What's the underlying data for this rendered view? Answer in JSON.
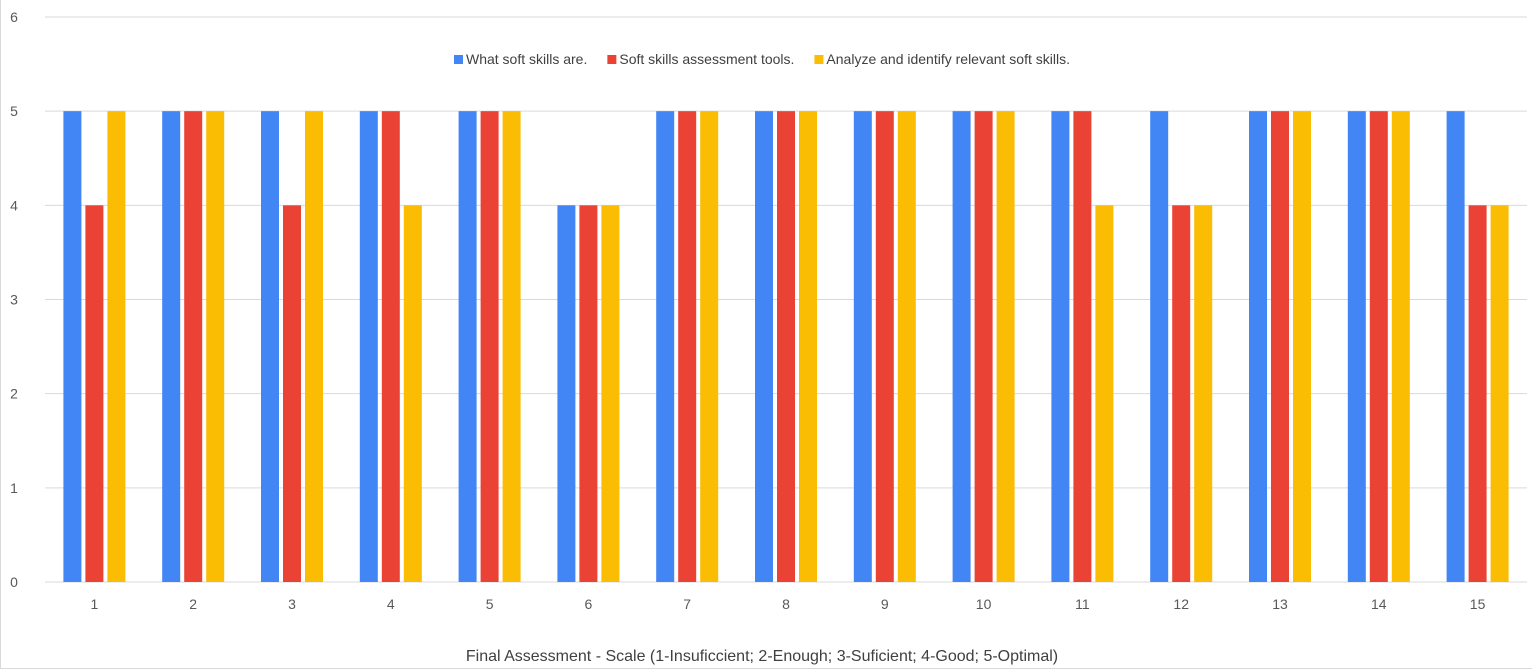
{
  "chart_data": {
    "type": "bar",
    "title": "",
    "xlabel": "Final Assessment - Scale (1-Insuficcient; 2-Enough; 3-Suficient; 4-Good; 5-Optimal)",
    "ylabel": "",
    "ylim": [
      0,
      6
    ],
    "yticks": [
      0,
      1,
      2,
      3,
      4,
      5,
      6
    ],
    "grid": true,
    "legend_position": "top-center",
    "categories": [
      "1",
      "2",
      "3",
      "4",
      "5",
      "6",
      "7",
      "8",
      "9",
      "10",
      "11",
      "12",
      "13",
      "14",
      "15"
    ],
    "series": [
      {
        "name": "What soft skills are.",
        "color": "#4285f4",
        "values": [
          5,
          5,
          5,
          5,
          5,
          4,
          5,
          5,
          5,
          5,
          5,
          5,
          5,
          5,
          5
        ]
      },
      {
        "name": "Soft skills assessment tools.",
        "color": "#ea4335",
        "values": [
          4,
          5,
          4,
          5,
          5,
          4,
          5,
          5,
          5,
          5,
          5,
          4,
          5,
          5,
          4
        ]
      },
      {
        "name": "Analyze and identify relevant soft skills.",
        "color": "#fbbc04",
        "values": [
          5,
          5,
          5,
          4,
          5,
          4,
          5,
          5,
          5,
          5,
          4,
          4,
          5,
          5,
          4
        ]
      }
    ]
  },
  "colors": {
    "gridline": "#d9d9d9",
    "tick_text": "#595959"
  }
}
